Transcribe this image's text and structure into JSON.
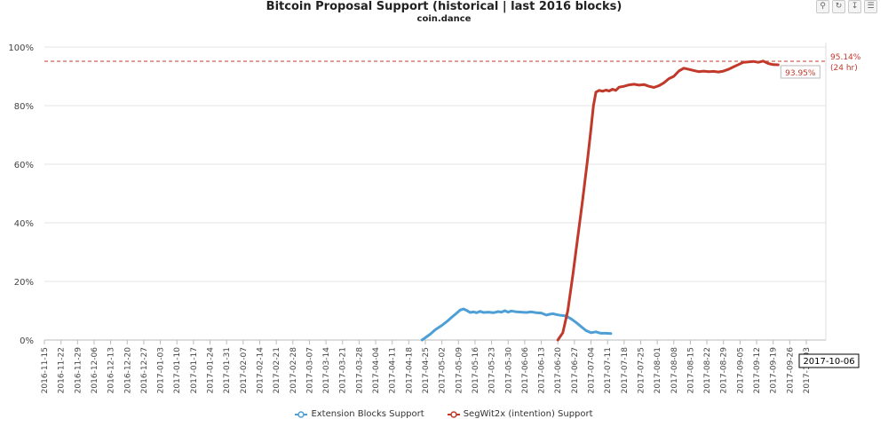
{
  "toolbar": {
    "zoom_icon": "zoom-icon",
    "reset_icon": "reset-icon",
    "export_icon": "export-icon",
    "menu_icon": "menu-icon"
  },
  "hover_label": "2017-10-06",
  "chart_data": {
    "type": "line",
    "title": "Bitcoin Proposal Support (historical | last 2016 blocks)",
    "subtitle": "coin.dance",
    "xlabel": "",
    "ylabel": "",
    "ylim": [
      0,
      100
    ],
    "yticks": [
      "0%",
      "20%",
      "40%",
      "60%",
      "80%",
      "100%"
    ],
    "grid": true,
    "legend_position": "bottom-center",
    "categories": [
      "2016-11-15",
      "2016-11-22",
      "2016-11-29",
      "2016-12-06",
      "2016-12-13",
      "2016-12-20",
      "2016-12-27",
      "2017-01-03",
      "2017-01-10",
      "2017-01-17",
      "2017-01-24",
      "2017-01-31",
      "2017-02-07",
      "2017-02-14",
      "2017-02-21",
      "2017-02-28",
      "2017-03-07",
      "2017-03-14",
      "2017-03-21",
      "2017-03-28",
      "2017-04-04",
      "2017-04-11",
      "2017-04-18",
      "2017-04-25",
      "2017-05-02",
      "2017-05-09",
      "2017-05-16",
      "2017-05-23",
      "2017-05-30",
      "2017-06-06",
      "2017-06-13",
      "2017-06-20",
      "2017-06-27",
      "2017-07-04",
      "2017-07-11",
      "2017-07-18",
      "2017-07-25",
      "2017-08-01",
      "2017-08-08",
      "2017-08-15",
      "2017-08-22",
      "2017-08-29",
      "2017-09-05",
      "2017-09-12",
      "2017-09-19",
      "2017-09-26",
      "2017-10-03"
    ],
    "threshold": {
      "value": 95.14,
      "label": "95.14%",
      "sublabel": "(24 hr)",
      "color": "#c0392b"
    },
    "end_value_label": "93.95%",
    "series": [
      {
        "name": "Extension Blocks Support",
        "color": "#4d9fd6",
        "points": [
          [
            22.8,
            0
          ],
          [
            23.0,
            0.8
          ],
          [
            23.3,
            2.0
          ],
          [
            23.6,
            3.5
          ],
          [
            24.0,
            5.0
          ],
          [
            24.3,
            6.3
          ],
          [
            24.6,
            7.8
          ],
          [
            24.9,
            9.2
          ],
          [
            25.1,
            10.2
          ],
          [
            25.3,
            10.6
          ],
          [
            25.5,
            10.1
          ],
          [
            25.7,
            9.4
          ],
          [
            25.9,
            9.6
          ],
          [
            26.1,
            9.3
          ],
          [
            26.3,
            9.8
          ],
          [
            26.5,
            9.4
          ],
          [
            26.8,
            9.5
          ],
          [
            27.1,
            9.3
          ],
          [
            27.4,
            9.7
          ],
          [
            27.6,
            9.5
          ],
          [
            27.8,
            10.0
          ],
          [
            28.0,
            9.5
          ],
          [
            28.2,
            9.9
          ],
          [
            28.5,
            9.6
          ],
          [
            28.8,
            9.5
          ],
          [
            29.1,
            9.4
          ],
          [
            29.4,
            9.6
          ],
          [
            29.7,
            9.3
          ],
          [
            30.0,
            9.2
          ],
          [
            30.3,
            8.5
          ],
          [
            30.5,
            8.8
          ],
          [
            30.7,
            9.0
          ],
          [
            30.9,
            8.7
          ],
          [
            31.2,
            8.4
          ],
          [
            31.5,
            8.2
          ],
          [
            31.8,
            7.2
          ],
          [
            32.1,
            6.0
          ],
          [
            32.4,
            4.6
          ],
          [
            32.7,
            3.2
          ],
          [
            33.0,
            2.5
          ],
          [
            33.3,
            2.8
          ],
          [
            33.6,
            2.3
          ],
          [
            33.9,
            2.3
          ],
          [
            34.2,
            2.2
          ]
        ]
      },
      {
        "name": "SegWit2x (intention) Support",
        "color": "#c0392b",
        "points": [
          [
            31.0,
            0
          ],
          [
            31.3,
            2.5
          ],
          [
            31.6,
            10.0
          ],
          [
            31.9,
            22.0
          ],
          [
            32.2,
            35.0
          ],
          [
            32.5,
            48.0
          ],
          [
            32.8,
            62.0
          ],
          [
            33.0,
            72.0
          ],
          [
            33.15,
            80.0
          ],
          [
            33.3,
            84.6
          ],
          [
            33.5,
            85.2
          ],
          [
            33.7,
            84.9
          ],
          [
            33.9,
            85.3
          ],
          [
            34.1,
            85.0
          ],
          [
            34.3,
            85.6
          ],
          [
            34.5,
            85.2
          ],
          [
            34.7,
            86.3
          ],
          [
            35.0,
            86.6
          ],
          [
            35.3,
            87.1
          ],
          [
            35.6,
            87.3
          ],
          [
            35.9,
            87.0
          ],
          [
            36.2,
            87.2
          ],
          [
            36.5,
            86.6
          ],
          [
            36.8,
            86.2
          ],
          [
            37.1,
            86.8
          ],
          [
            37.4,
            87.8
          ],
          [
            37.7,
            89.2
          ],
          [
            38.0,
            90.0
          ],
          [
            38.3,
            91.8
          ],
          [
            38.6,
            92.8
          ],
          [
            38.9,
            92.4
          ],
          [
            39.2,
            92.0
          ],
          [
            39.5,
            91.6
          ],
          [
            39.8,
            91.8
          ],
          [
            40.1,
            91.6
          ],
          [
            40.4,
            91.7
          ],
          [
            40.7,
            91.5
          ],
          [
            41.0,
            91.8
          ],
          [
            41.3,
            92.4
          ],
          [
            41.6,
            93.2
          ],
          [
            41.9,
            94.0
          ],
          [
            42.2,
            94.8
          ],
          [
            42.5,
            94.9
          ],
          [
            42.8,
            95.1
          ],
          [
            43.1,
            94.8
          ],
          [
            43.4,
            95.2
          ],
          [
            43.7,
            94.4
          ],
          [
            44.0,
            94.0
          ],
          [
            44.3,
            93.95
          ]
        ]
      }
    ]
  }
}
